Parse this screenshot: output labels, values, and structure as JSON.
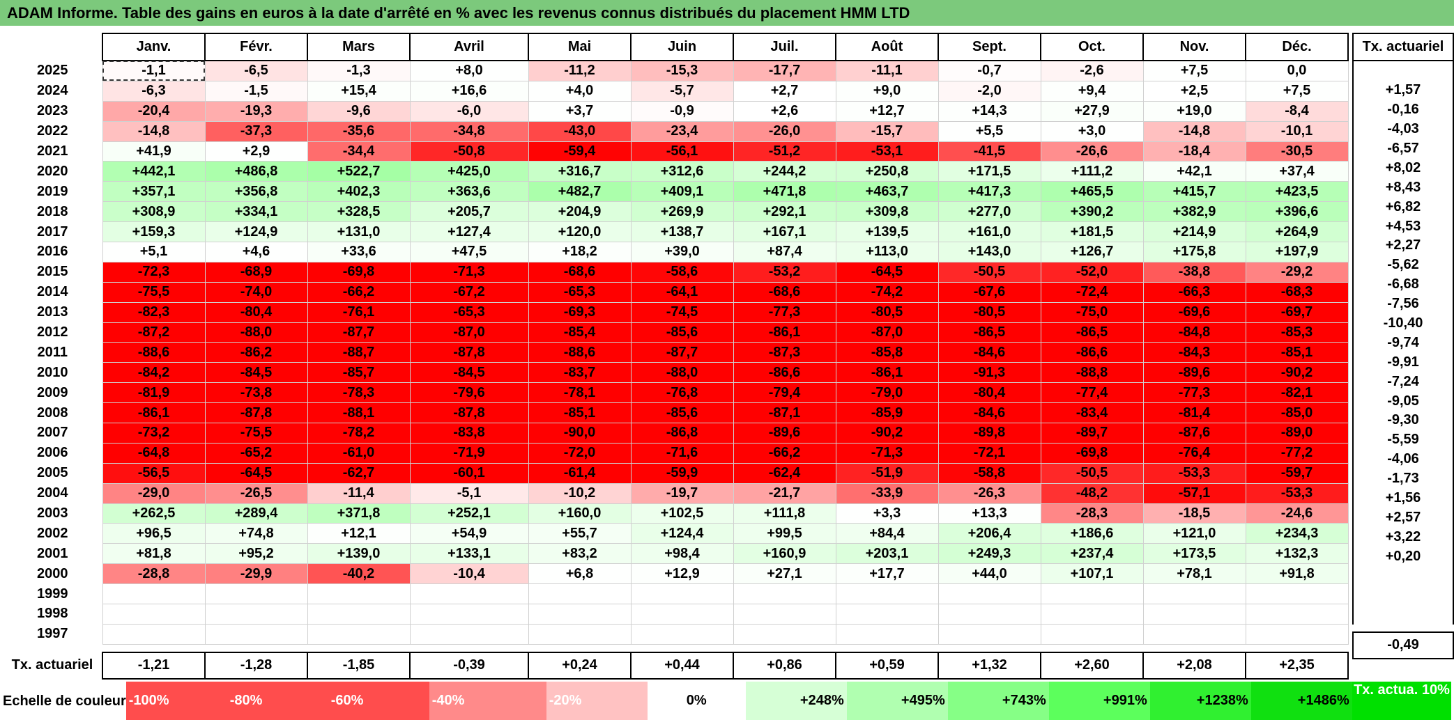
{
  "title": "ADAM Informe. Table des gains en euros à la date d'arrêté en % avec les revenus connus distribués du placement HMM LTD",
  "months": [
    "Janv.",
    "Févr.",
    "Mars",
    "Avril",
    "Mai",
    "Juin",
    "Juil.",
    "Août",
    "Sept.",
    "Oct.",
    "Nov.",
    "Déc."
  ],
  "side_header": "Tx. actuariel",
  "rows": [
    {
      "year": "2025",
      "values": [
        "-1,1",
        "-6,5",
        "-1,3",
        "+8,0",
        "-11,2",
        "-15,3",
        "-17,7",
        "-11,1",
        "-0,7",
        "-2,6",
        "+7,5",
        "0,0"
      ],
      "rate": ""
    },
    {
      "year": "2024",
      "values": [
        "-6,3",
        "-1,5",
        "+15,4",
        "+16,6",
        "+4,0",
        "-5,7",
        "+2,7",
        "+9,0",
        "-2,0",
        "+9,4",
        "+2,5",
        "+7,5"
      ],
      "rate": "+1,57"
    },
    {
      "year": "2023",
      "values": [
        "-20,4",
        "-19,3",
        "-9,6",
        "-6,0",
        "+3,7",
        "-0,9",
        "+2,6",
        "+12,7",
        "+14,3",
        "+27,9",
        "+19,0",
        "-8,4"
      ],
      "rate": "-0,16"
    },
    {
      "year": "2022",
      "values": [
        "-14,8",
        "-37,3",
        "-35,6",
        "-34,8",
        "-43,0",
        "-23,4",
        "-26,0",
        "-15,7",
        "+5,5",
        "+3,0",
        "-14,8",
        "-10,1"
      ],
      "rate": "-4,03"
    },
    {
      "year": "2021",
      "values": [
        "+41,9",
        "+2,9",
        "-34,4",
        "-50,8",
        "-59,4",
        "-56,1",
        "-51,2",
        "-53,1",
        "-41,5",
        "-26,6",
        "-18,4",
        "-30,5"
      ],
      "rate": "-6,57"
    },
    {
      "year": "2020",
      "values": [
        "+442,1",
        "+486,8",
        "+522,7",
        "+425,0",
        "+316,7",
        "+312,6",
        "+244,2",
        "+250,8",
        "+171,5",
        "+111,2",
        "+42,1",
        "+37,4"
      ],
      "rate": "+8,02"
    },
    {
      "year": "2019",
      "values": [
        "+357,1",
        "+356,8",
        "+402,3",
        "+363,6",
        "+482,7",
        "+409,1",
        "+471,8",
        "+463,7",
        "+417,3",
        "+465,5",
        "+415,7",
        "+423,5"
      ],
      "rate": "+8,43"
    },
    {
      "year": "2018",
      "values": [
        "+308,9",
        "+334,1",
        "+328,5",
        "+205,7",
        "+204,9",
        "+269,9",
        "+292,1",
        "+309,8",
        "+277,0",
        "+390,2",
        "+382,9",
        "+396,6"
      ],
      "rate": "+6,82"
    },
    {
      "year": "2017",
      "values": [
        "+159,3",
        "+124,9",
        "+131,0",
        "+127,4",
        "+120,0",
        "+138,7",
        "+167,1",
        "+139,5",
        "+161,0",
        "+181,5",
        "+214,9",
        "+264,9"
      ],
      "rate": "+4,53"
    },
    {
      "year": "2016",
      "values": [
        "+5,1",
        "+4,6",
        "+33,6",
        "+47,5",
        "+18,2",
        "+39,0",
        "+87,4",
        "+113,0",
        "+143,0",
        "+126,7",
        "+175,8",
        "+197,9"
      ],
      "rate": "+2,27"
    },
    {
      "year": "2015",
      "values": [
        "-72,3",
        "-68,9",
        "-69,8",
        "-71,3",
        "-68,6",
        "-58,6",
        "-53,2",
        "-64,5",
        "-50,5",
        "-52,0",
        "-38,8",
        "-29,2"
      ],
      "rate": "-5,62"
    },
    {
      "year": "2014",
      "values": [
        "-75,5",
        "-74,0",
        "-66,2",
        "-67,2",
        "-65,3",
        "-64,1",
        "-68,6",
        "-74,2",
        "-67,6",
        "-72,4",
        "-66,3",
        "-68,3"
      ],
      "rate": "-6,68"
    },
    {
      "year": "2013",
      "values": [
        "-82,3",
        "-80,4",
        "-76,1",
        "-65,3",
        "-69,3",
        "-74,5",
        "-77,3",
        "-80,5",
        "-80,5",
        "-75,0",
        "-69,6",
        "-69,7"
      ],
      "rate": "-7,56"
    },
    {
      "year": "2012",
      "values": [
        "-87,2",
        "-88,0",
        "-87,7",
        "-87,0",
        "-85,4",
        "-85,6",
        "-86,1",
        "-87,0",
        "-86,5",
        "-86,5",
        "-84,8",
        "-85,3"
      ],
      "rate": "-10,40"
    },
    {
      "year": "2011",
      "values": [
        "-88,6",
        "-86,2",
        "-88,7",
        "-87,8",
        "-88,6",
        "-87,7",
        "-87,3",
        "-85,8",
        "-84,6",
        "-86,6",
        "-84,3",
        "-85,1"
      ],
      "rate": "-9,74"
    },
    {
      "year": "2010",
      "values": [
        "-84,2",
        "-84,5",
        "-85,7",
        "-84,5",
        "-83,7",
        "-88,0",
        "-86,6",
        "-86,1",
        "-91,3",
        "-88,8",
        "-89,6",
        "-90,2"
      ],
      "rate": "-9,91"
    },
    {
      "year": "2009",
      "values": [
        "-81,9",
        "-73,8",
        "-78,3",
        "-79,6",
        "-78,1",
        "-76,8",
        "-79,4",
        "-79,0",
        "-80,4",
        "-77,4",
        "-77,3",
        "-82,1"
      ],
      "rate": "-7,24"
    },
    {
      "year": "2008",
      "values": [
        "-86,1",
        "-87,8",
        "-88,1",
        "-87,8",
        "-85,1",
        "-85,6",
        "-87,1",
        "-85,9",
        "-84,6",
        "-83,4",
        "-81,4",
        "-85,0"
      ],
      "rate": "-9,05"
    },
    {
      "year": "2007",
      "values": [
        "-73,2",
        "-75,5",
        "-78,2",
        "-83,8",
        "-90,0",
        "-86,8",
        "-89,6",
        "-90,2",
        "-89,8",
        "-89,7",
        "-87,6",
        "-89,0"
      ],
      "rate": "-9,30"
    },
    {
      "year": "2006",
      "values": [
        "-64,8",
        "-65,2",
        "-61,0",
        "-71,9",
        "-72,0",
        "-71,6",
        "-66,2",
        "-71,3",
        "-72,1",
        "-69,8",
        "-76,4",
        "-77,2"
      ],
      "rate": "-5,59"
    },
    {
      "year": "2005",
      "values": [
        "-56,5",
        "-64,5",
        "-62,7",
        "-60,1",
        "-61,4",
        "-59,9",
        "-62,4",
        "-51,9",
        "-58,8",
        "-50,5",
        "-53,3",
        "-59,7"
      ],
      "rate": "-4,06"
    },
    {
      "year": "2004",
      "values": [
        "-29,0",
        "-26,5",
        "-11,4",
        "-5,1",
        "-10,2",
        "-19,7",
        "-21,7",
        "-33,9",
        "-26,3",
        "-48,2",
        "-57,1",
        "-53,3"
      ],
      "rate": "-1,73"
    },
    {
      "year": "2003",
      "values": [
        "+262,5",
        "+289,4",
        "+371,8",
        "+252,1",
        "+160,0",
        "+102,5",
        "+111,8",
        "+3,3",
        "+13,3",
        "-28,3",
        "-18,5",
        "-24,6"
      ],
      "rate": "+1,56"
    },
    {
      "year": "2002",
      "values": [
        "+96,5",
        "+74,8",
        "+12,1",
        "+54,9",
        "+55,7",
        "+124,4",
        "+99,5",
        "+84,4",
        "+206,4",
        "+186,6",
        "+121,0",
        "+234,3"
      ],
      "rate": "+2,57"
    },
    {
      "year": "2001",
      "values": [
        "+81,8",
        "+95,2",
        "+139,0",
        "+133,1",
        "+83,2",
        "+98,4",
        "+160,9",
        "+203,1",
        "+249,3",
        "+237,4",
        "+173,5",
        "+132,3"
      ],
      "rate": "+3,22"
    },
    {
      "year": "2000",
      "values": [
        "-28,8",
        "-29,9",
        "-40,2",
        "-10,4",
        "+6,8",
        "+12,9",
        "+27,1",
        "+17,7",
        "+44,0",
        "+107,1",
        "+78,1",
        "+91,8"
      ],
      "rate": "+0,20"
    },
    {
      "year": "1999",
      "values": [
        "",
        "",
        "",
        "",
        "",
        "",
        "",
        "",
        "",
        "",
        "",
        ""
      ],
      "rate": ""
    },
    {
      "year": "1998",
      "values": [
        "",
        "",
        "",
        "",
        "",
        "",
        "",
        "",
        "",
        "",
        "",
        ""
      ],
      "rate": ""
    },
    {
      "year": "1997",
      "values": [
        "",
        "",
        "",
        "",
        "",
        "",
        "",
        "",
        "",
        "",
        "",
        ""
      ],
      "rate": ""
    }
  ],
  "footer": {
    "label": "Tx. actuariel",
    "values": [
      "-1,21",
      "-1,28",
      "-1,85",
      "-0,39",
      "+0,24",
      "+0,44",
      "+0,86",
      "+0,59",
      "+1,32",
      "+2,60",
      "+2,08",
      "+2,35"
    ],
    "total": "-0,49"
  },
  "scale": {
    "label": "Echelle de couleur",
    "items": [
      {
        "text": "-100%",
        "color": "#ff4d4d"
      },
      {
        "text": "-80%",
        "color": "#ff4d4d"
      },
      {
        "text": "-60%",
        "color": "#ff4d4d"
      },
      {
        "text": "-40%",
        "color": "#ff8a8a"
      },
      {
        "text": "-20%",
        "color": "#ffc2c2"
      },
      {
        "text": "0%",
        "color": "#ffffff"
      },
      {
        "text": "+248%",
        "color": "#d6ffd6"
      },
      {
        "text": "+495%",
        "color": "#b0ffb0"
      },
      {
        "text": "+743%",
        "color": "#86ff86"
      },
      {
        "text": "+991%",
        "color": "#5cff5c"
      },
      {
        "text": "+1238%",
        "color": "#30f030"
      },
      {
        "text": "+1486%",
        "color": "#10e010"
      }
    ],
    "box_label": "Tx. actua. 10%",
    "box_color": "#00e000"
  }
}
